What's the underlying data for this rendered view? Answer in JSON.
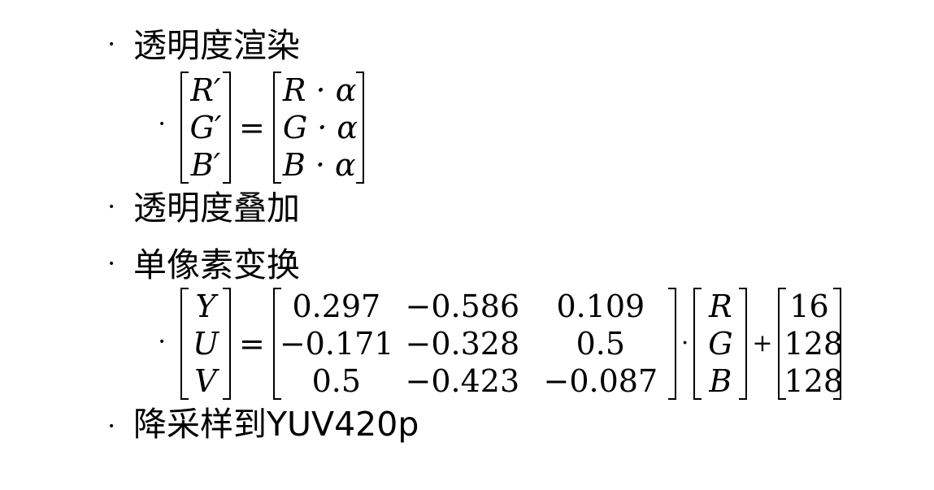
{
  "items": [
    {
      "id": "alpha-render",
      "label": "透明度渲染"
    },
    {
      "id": "alpha-blend",
      "label": "透明度叠加"
    },
    {
      "id": "pixel-transform",
      "label": "单像素变换"
    },
    {
      "id": "downsample",
      "label": "降采样到YUV420p"
    }
  ],
  "bullet_symbol": "•",
  "formula_alpha": {
    "lhs": [
      "R′",
      "G′",
      "B′"
    ],
    "equals": "=",
    "rhs": [
      "R · α",
      "G · α",
      "B · α"
    ]
  },
  "formula_yuv": {
    "lhs": [
      "Y",
      "U",
      "V"
    ],
    "equals": "=",
    "matrix": [
      [
        "0.297",
        "−0.586",
        "0.109"
      ],
      [
        "−0.171",
        "−0.328",
        "0.5"
      ],
      [
        "0.5",
        "−0.423",
        "−0.087"
      ]
    ],
    "dot": "·",
    "rgb": [
      "R",
      "G",
      "B"
    ],
    "plus": "+",
    "offset": [
      "16",
      "128",
      "128"
    ]
  }
}
